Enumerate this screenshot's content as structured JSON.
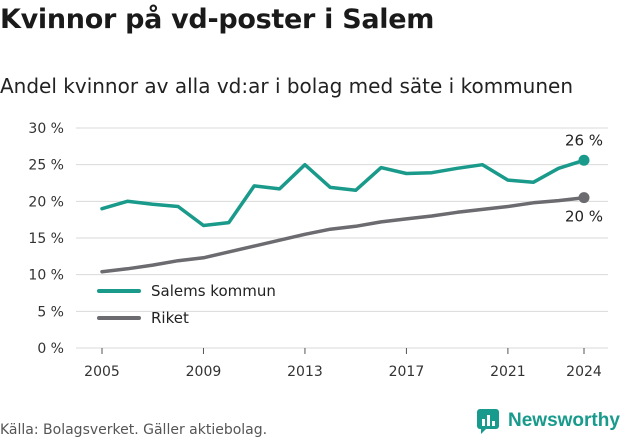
{
  "header": {
    "title": "Kvinnor på vd-poster i Salem",
    "subtitle": "Andel kvinnor av alla vd:ar i bolag med säte i kommunen"
  },
  "footer": {
    "source": "Källa: Bolagsverket. Gäller aktiebolag.",
    "brand": "Newsworthy",
    "brand_icon": "newsworthy-logo-icon"
  },
  "colors": {
    "teal": "#1a9a8b",
    "gray": "#6b6b70",
    "grid": "#d9d9d9",
    "brand": "#189a8c"
  },
  "chart_data": {
    "type": "line",
    "x": [
      2005,
      2006,
      2007,
      2008,
      2009,
      2010,
      2011,
      2012,
      2013,
      2014,
      2015,
      2016,
      2017,
      2018,
      2019,
      2020,
      2021,
      2022,
      2023,
      2024
    ],
    "series": [
      {
        "name": "Salems kommun",
        "color": "#1a9a8b",
        "values": [
          19.0,
          20.0,
          19.6,
          19.3,
          16.7,
          17.1,
          22.1,
          21.7,
          25.0,
          21.9,
          21.5,
          24.6,
          23.8,
          23.9,
          24.5,
          25.0,
          22.9,
          22.6,
          24.5,
          25.6
        ],
        "end_label": "26 %"
      },
      {
        "name": "Riket",
        "color": "#6b6b70",
        "values": [
          10.4,
          10.8,
          11.3,
          11.9,
          12.3,
          13.1,
          13.9,
          14.7,
          15.5,
          16.2,
          16.6,
          17.2,
          17.6,
          18.0,
          18.5,
          18.9,
          19.3,
          19.8,
          20.1,
          20.5
        ],
        "end_label": "20 %"
      }
    ],
    "x_ticks": [
      "2005",
      "2009",
      "2013",
      "2017",
      "2021",
      "2024"
    ],
    "y_ticks": [
      "0 %",
      "5 %",
      "10 %",
      "15 %",
      "20 %",
      "25 %",
      "30 %"
    ],
    "ylim": [
      0,
      30
    ],
    "xlim": [
      2005,
      2024
    ],
    "grid": true,
    "legend_placement": "bottom-left"
  }
}
